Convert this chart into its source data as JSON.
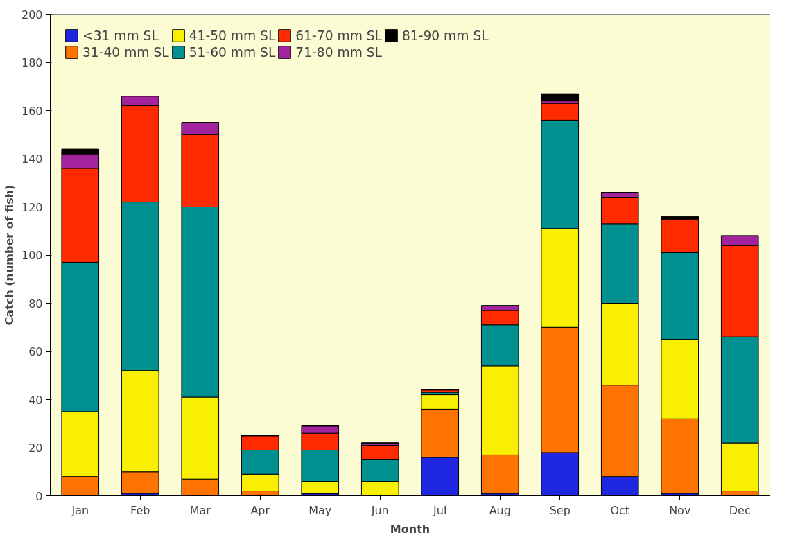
{
  "chart_data": {
    "type": "bar",
    "stacked": true,
    "xlabel": "Month",
    "ylabel": "Catch (number of fish)",
    "categories": [
      "Jan",
      "Feb",
      "Mar",
      "Apr",
      "May",
      "Jun",
      "Jul",
      "Aug",
      "Sep",
      "Oct",
      "Nov",
      "Dec"
    ],
    "series": [
      {
        "name": "<31 mm SL",
        "color": "#1f26e0",
        "values": [
          0,
          1,
          0,
          0,
          1,
          0,
          16,
          1,
          18,
          8,
          1,
          0
        ]
      },
      {
        "name": "31-40 mm SL",
        "color": "#ff7300",
        "values": [
          8,
          9,
          7,
          2,
          0,
          0,
          20,
          16,
          52,
          38,
          31,
          2
        ]
      },
      {
        "name": "41-50 mm SL",
        "color": "#f8f000",
        "values": [
          27,
          42,
          34,
          7,
          5,
          6,
          6,
          37,
          41,
          34,
          33,
          20
        ]
      },
      {
        "name": "51-60 mm SL",
        "color": "#009090",
        "values": [
          62,
          70,
          79,
          10,
          13,
          9,
          1,
          17,
          45,
          33,
          36,
          44
        ]
      },
      {
        "name": "61-70 mm SL",
        "color": "#ff2a00",
        "values": [
          39,
          40,
          30,
          6,
          7,
          6,
          1,
          6,
          7,
          11,
          14,
          38
        ]
      },
      {
        "name": "71-80 mm SL",
        "color": "#a2239c",
        "values": [
          6,
          4,
          5,
          0,
          3,
          1,
          0,
          2,
          1,
          2,
          0,
          4
        ]
      },
      {
        "name": "81-90 mm SL",
        "color": "#000000",
        "values": [
          2,
          0,
          0,
          0,
          0,
          0,
          0,
          0,
          3,
          0,
          1,
          0
        ]
      }
    ],
    "ylim": [
      0,
      200
    ],
    "yticks": [
      0,
      20,
      40,
      60,
      80,
      100,
      120,
      140,
      160,
      180,
      200
    ],
    "grid": false,
    "legend": "top left"
  }
}
